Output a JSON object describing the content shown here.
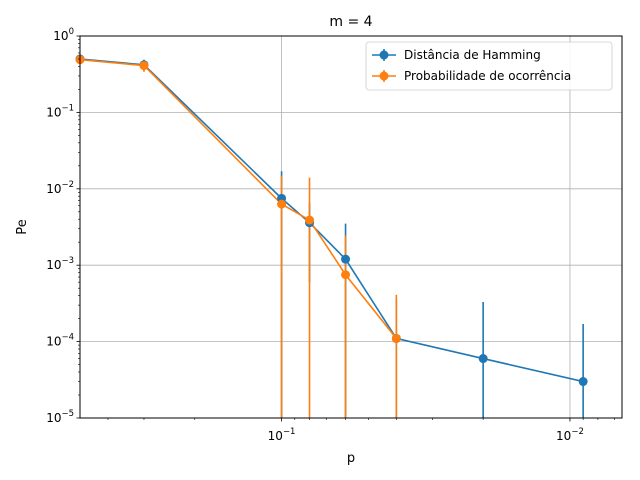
{
  "chart_data": {
    "type": "line",
    "title": "m = 4",
    "xlabel": "p",
    "ylabel": "Pe",
    "xscale": "log",
    "yscale": "log",
    "x_axis_inverted": true,
    "xlim": [
      0.5,
      0.0066
    ],
    "ylim": [
      1e-05,
      1
    ],
    "grid": true,
    "legend_position": "top-right",
    "x_ticks": [
      {
        "value": 0.1,
        "base": "10",
        "exp": "−1"
      },
      {
        "value": 0.01,
        "base": "10",
        "exp": "−2"
      }
    ],
    "y_ticks": [
      {
        "value": 1,
        "base": "10",
        "exp": "0"
      },
      {
        "value": 0.1,
        "base": "10",
        "exp": "−1"
      },
      {
        "value": 0.01,
        "base": "10",
        "exp": "−2"
      },
      {
        "value": 0.001,
        "base": "10",
        "exp": "−3"
      },
      {
        "value": 0.0001,
        "base": "10",
        "exp": "−4"
      },
      {
        "value": 1e-05,
        "base": "10",
        "exp": "−5"
      }
    ],
    "series": [
      {
        "name": "Distância de Hamming",
        "color": "#1f77b4",
        "x": [
          0.5,
          0.3,
          0.1,
          0.08,
          0.06,
          0.04,
          0.02,
          0.009
        ],
        "y": [
          0.5,
          0.42,
          0.0075,
          0.0036,
          0.0012,
          0.00011,
          6e-05,
          3e-05
        ],
        "err": [
          0.04,
          0.07,
          0.0095,
          0.003,
          0.0023,
          0.00025,
          0.00027,
          0.00014
        ]
      },
      {
        "name": "Probabilidade de ocorrência",
        "color": "#ff7f0e",
        "x": [
          0.5,
          0.3,
          0.1,
          0.08,
          0.06,
          0.04
        ],
        "y": [
          0.49,
          0.41,
          0.0063,
          0.0039,
          0.00075,
          0.00011
        ],
        "err": [
          0.04,
          0.07,
          0.0085,
          0.0101,
          0.0017,
          0.0003
        ]
      }
    ]
  }
}
